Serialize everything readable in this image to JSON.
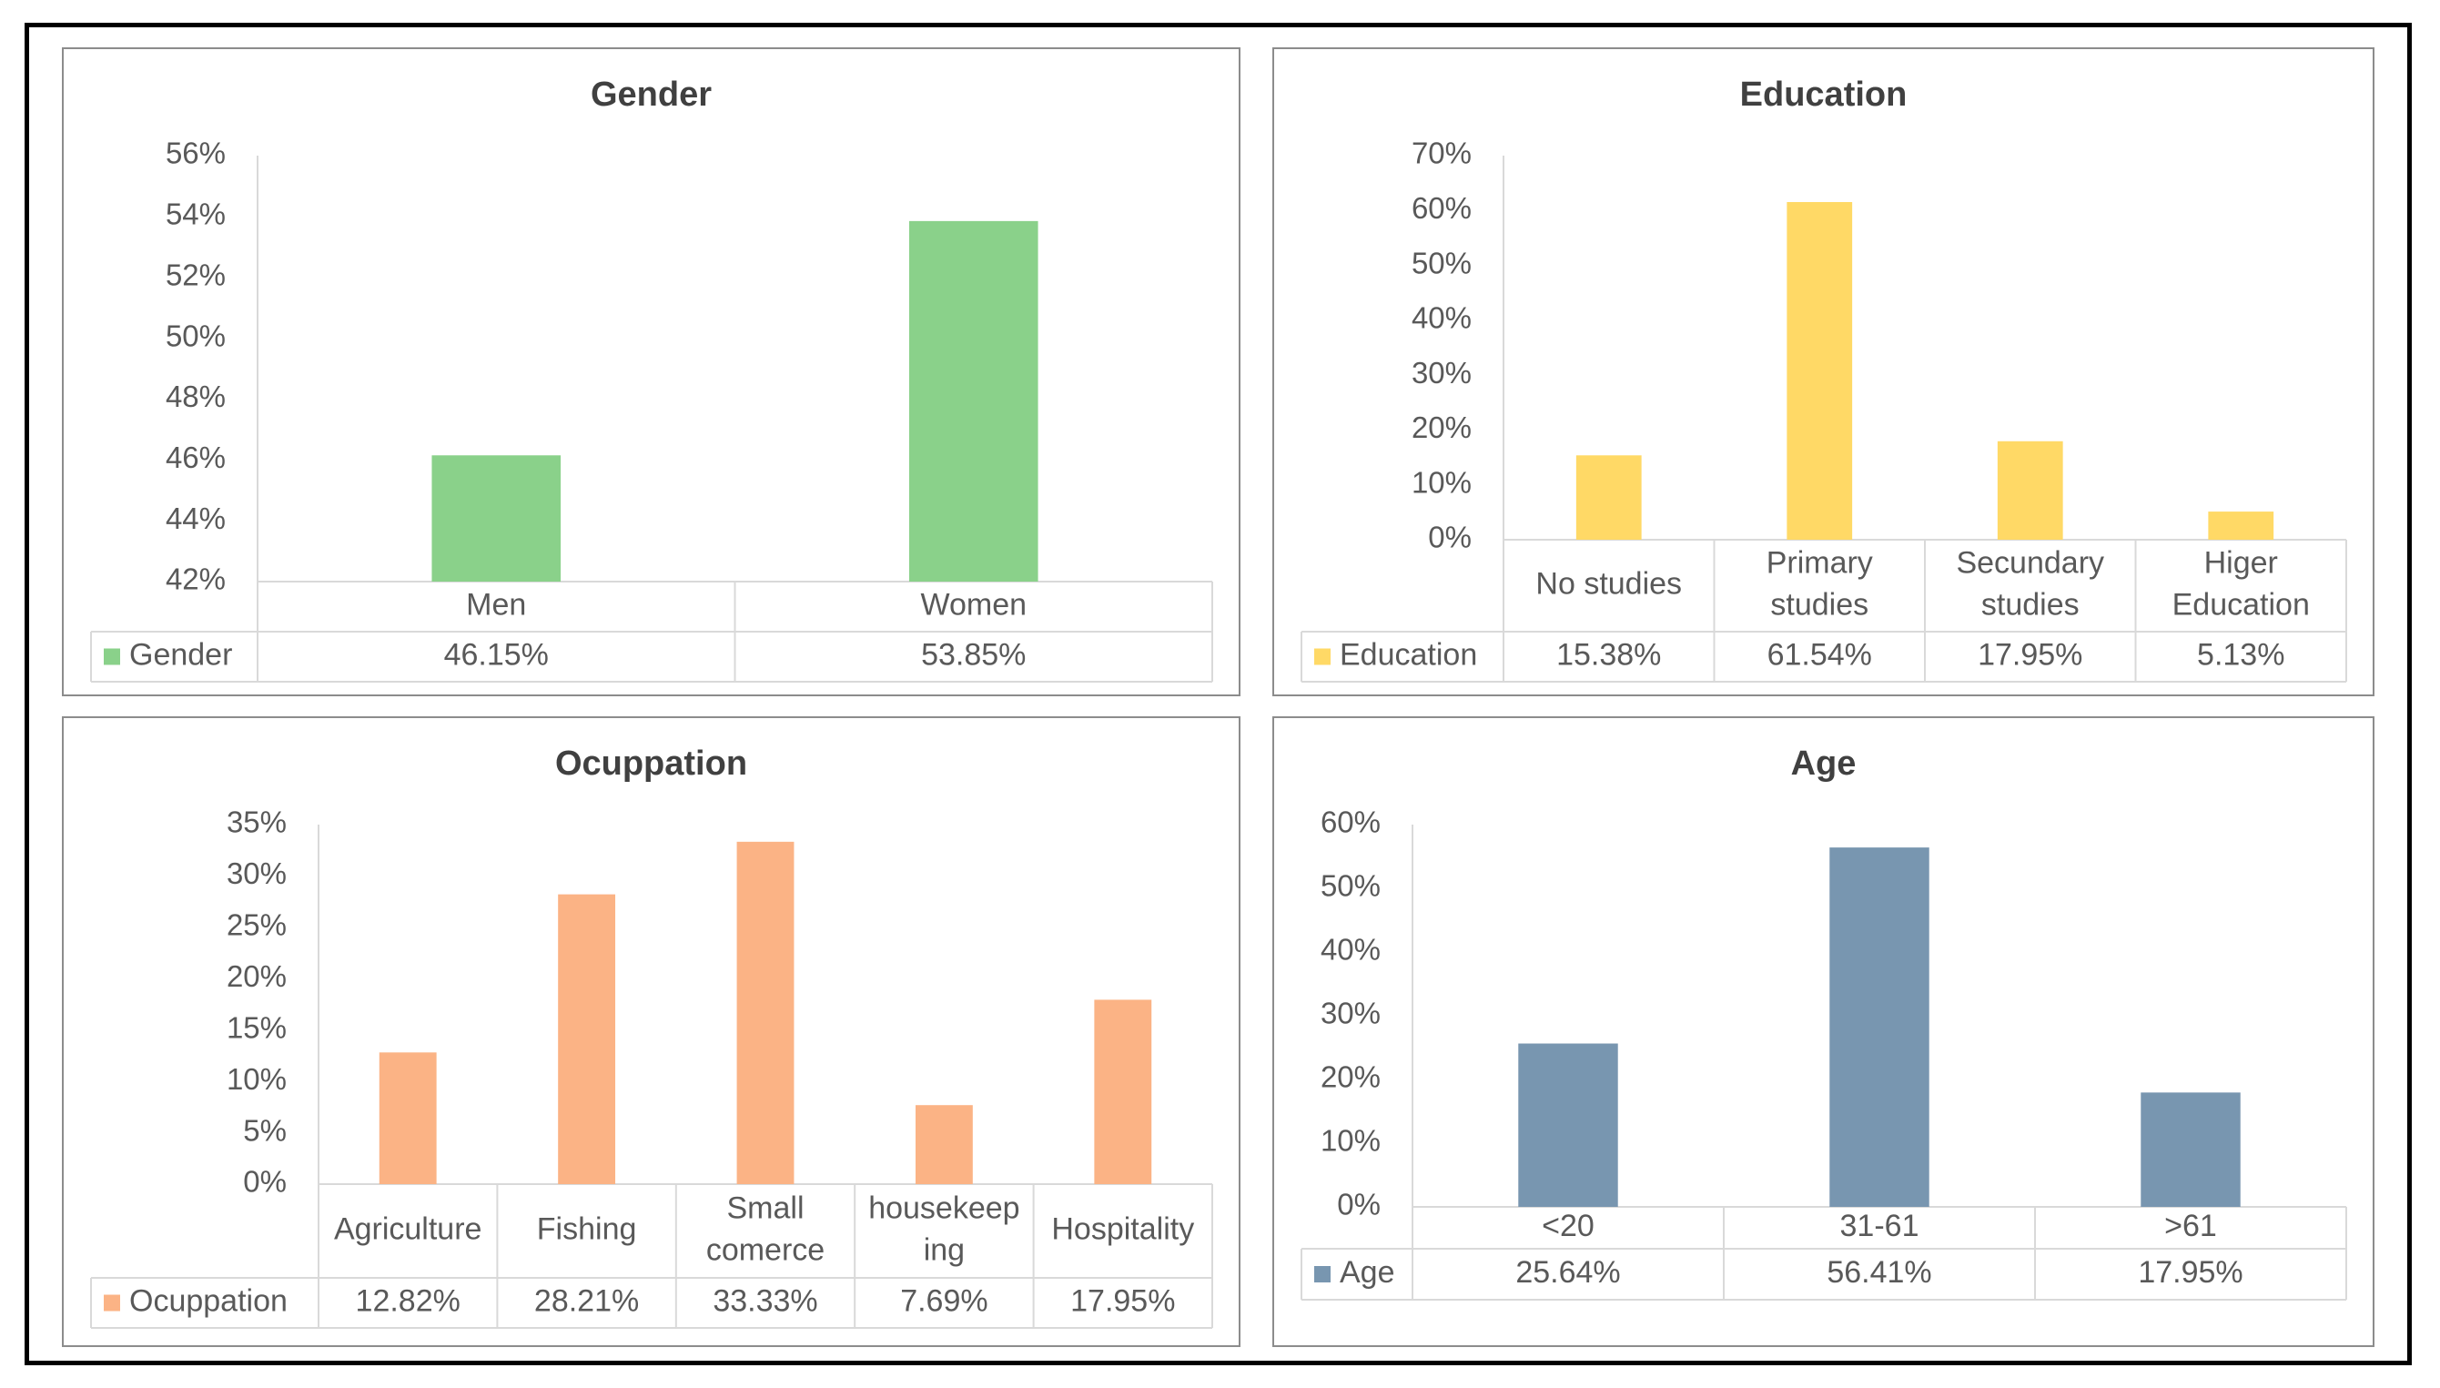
{
  "chart_data": [
    {
      "id": "gender",
      "type": "bar",
      "title": "Gender",
      "series_name": "Gender",
      "color": "#8ad18a",
      "categories": [
        "Men",
        "Women"
      ],
      "values": [
        46.15,
        53.85
      ],
      "value_labels": [
        "46.15%",
        "53.85%"
      ],
      "ylim": [
        42,
        56
      ],
      "yticks": [
        42,
        44,
        46,
        48,
        50,
        52,
        54,
        56
      ],
      "ytick_labels": [
        "42%",
        "44%",
        "46%",
        "48%",
        "50%",
        "52%",
        "54%",
        "56%"
      ],
      "grid": false,
      "legend": "data-table"
    },
    {
      "id": "education",
      "type": "bar",
      "title": "Education",
      "series_name": "Education",
      "color": "#ffd966",
      "categories": [
        [
          "No studies"
        ],
        [
          "Primary",
          "studies"
        ],
        [
          "Secundary",
          "studies"
        ],
        [
          "Higer",
          "Education"
        ]
      ],
      "values": [
        15.38,
        61.54,
        17.95,
        5.13
      ],
      "value_labels": [
        "15.38%",
        "61.54%",
        "17.95%",
        "5.13%"
      ],
      "ylim": [
        0,
        70
      ],
      "yticks": [
        0,
        10,
        20,
        30,
        40,
        50,
        60,
        70
      ],
      "ytick_labels": [
        "0%",
        "10%",
        "20%",
        "30%",
        "40%",
        "50%",
        "60%",
        "70%"
      ],
      "grid": false,
      "legend": "data-table"
    },
    {
      "id": "occupation",
      "type": "bar",
      "title": "Ocuppation",
      "series_name": "Ocuppation",
      "color": "#fbb385",
      "categories": [
        [
          "Agriculture"
        ],
        [
          "Fishing"
        ],
        [
          "Small",
          "comerce"
        ],
        [
          "housekeep",
          "ing"
        ],
        [
          "Hospitality"
        ]
      ],
      "values": [
        12.82,
        28.21,
        33.33,
        7.69,
        17.95
      ],
      "value_labels": [
        "12.82%",
        "28.21%",
        "33.33%",
        "7.69%",
        "17.95%"
      ],
      "ylim": [
        0,
        35
      ],
      "yticks": [
        0,
        5,
        10,
        15,
        20,
        25,
        30,
        35
      ],
      "ytick_labels": [
        "0%",
        "5%",
        "10%",
        "15%",
        "20%",
        "25%",
        "30%",
        "35%"
      ],
      "grid": false,
      "legend": "data-table"
    },
    {
      "id": "age",
      "type": "bar",
      "title": "Age",
      "series_name": "Age",
      "color": "#7896b0",
      "categories": [
        [
          "<20"
        ],
        [
          "31-61"
        ],
        [
          ">61"
        ]
      ],
      "values": [
        25.64,
        56.41,
        17.95
      ],
      "value_labels": [
        "25.64%",
        "56.41%",
        "17.95%"
      ],
      "ylim": [
        0,
        60
      ],
      "yticks": [
        0,
        10,
        20,
        30,
        40,
        50,
        60
      ],
      "ytick_labels": [
        "0%",
        "10%",
        "20%",
        "30%",
        "40%",
        "50%",
        "60%"
      ],
      "grid": false,
      "legend": "data-table"
    }
  ]
}
